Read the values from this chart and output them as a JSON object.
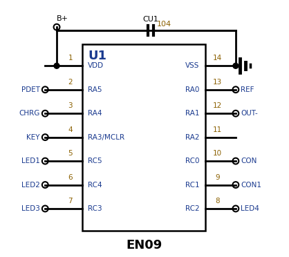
{
  "bg_color": "#ffffff",
  "line_color": "#000000",
  "text_color": "#000000",
  "pin_num_color": "#8B6000",
  "label_color": "#1a3a8f",
  "fig_width": 4.18,
  "fig_height": 3.72,
  "title": "EN09",
  "u1_label": "U1",
  "cu1_label": "CU1",
  "cu1_value": "104",
  "bplus_label": "B+",
  "left_pins": [
    {
      "pin": 1,
      "name": "VDD",
      "signal": "",
      "has_circle": false
    },
    {
      "pin": 2,
      "name": "RA5",
      "signal": "PDET",
      "has_circle": true
    },
    {
      "pin": 3,
      "name": "RA4",
      "signal": "CHRG",
      "has_circle": true
    },
    {
      "pin": 4,
      "name": "RA3/MCLR",
      "signal": "KEY",
      "has_circle": true
    },
    {
      "pin": 5,
      "name": "RC5",
      "signal": "LED1",
      "has_circle": true
    },
    {
      "pin": 6,
      "name": "RC4",
      "signal": "LED2",
      "has_circle": true
    },
    {
      "pin": 7,
      "name": "RC3",
      "signal": "LED3",
      "has_circle": true
    }
  ],
  "right_pins": [
    {
      "pin": 14,
      "name": "VSS",
      "signal": "",
      "has_circle": false,
      "has_gnd": true
    },
    {
      "pin": 13,
      "name": "RA0",
      "signal": "REF",
      "has_circle": true
    },
    {
      "pin": 12,
      "name": "RA1",
      "signal": "OUT-",
      "has_circle": true
    },
    {
      "pin": 11,
      "name": "RA2",
      "signal": "",
      "has_circle": false
    },
    {
      "pin": 10,
      "name": "RC0",
      "signal": "CON",
      "has_circle": true
    },
    {
      "pin": 9,
      "name": "RC1",
      "signal": "CON1",
      "has_circle": true
    },
    {
      "pin": 8,
      "name": "RC2",
      "signal": "LED4",
      "has_circle": true
    }
  ]
}
